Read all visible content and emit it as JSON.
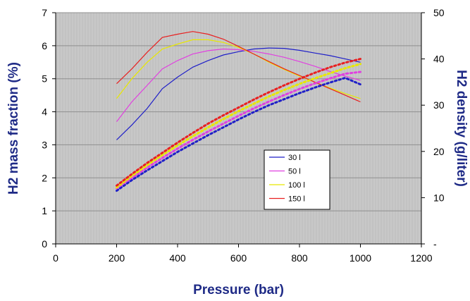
{
  "chart_data": {
    "type": "line",
    "xlabel": "Pressure (bar)",
    "ylabel": "H2 mass fraction (%)",
    "y2label": "H2 density (g/liter)",
    "xlim": [
      0,
      1200
    ],
    "ylim": [
      0,
      7
    ],
    "y2lim": [
      0,
      50
    ],
    "xticks": [
      "0",
      "200",
      "400",
      "600",
      "800",
      "1000",
      "1200"
    ],
    "yticks": [
      "0",
      "1",
      "2",
      "3",
      "4",
      "5",
      "6",
      "7"
    ],
    "y2ticks": [
      "-",
      "10",
      "20",
      "30",
      "40",
      "50"
    ],
    "grid": true,
    "plot_background": "#c8c8c8",
    "legend_position": "inside lower-right",
    "legend": [
      "30 l",
      "50 l",
      "100 l",
      "150 l"
    ],
    "colors": [
      "#1f1fc8",
      "#e040e0",
      "#e8e800",
      "#e82020"
    ],
    "mass_fraction_series": [
      {
        "name": "30 l",
        "color": "#1f1fc8",
        "x": [
          200,
          250,
          300,
          350,
          400,
          450,
          500,
          550,
          600,
          650,
          700,
          750,
          800,
          850,
          900,
          950,
          1000
        ],
        "y": [
          3.15,
          3.6,
          4.1,
          4.7,
          5.05,
          5.35,
          5.55,
          5.72,
          5.82,
          5.9,
          5.93,
          5.92,
          5.86,
          5.78,
          5.7,
          5.6,
          5.5
        ]
      },
      {
        "name": "50 l",
        "color": "#e040e0",
        "x": [
          200,
          250,
          300,
          350,
          400,
          450,
          500,
          550,
          600,
          650,
          700,
          750,
          800,
          850,
          900,
          950,
          1000
        ],
        "y": [
          3.7,
          4.3,
          4.8,
          5.3,
          5.55,
          5.75,
          5.85,
          5.9,
          5.88,
          5.83,
          5.75,
          5.65,
          5.52,
          5.38,
          5.22,
          5.08,
          4.95
        ]
      },
      {
        "name": "100 l",
        "color": "#e8e800",
        "x": [
          200,
          250,
          300,
          350,
          400,
          450,
          500,
          550,
          600,
          650,
          700,
          750,
          800,
          850,
          900,
          950,
          1000
        ],
        "y": [
          4.4,
          5.0,
          5.5,
          5.9,
          6.05,
          6.18,
          6.18,
          6.1,
          5.95,
          5.75,
          5.5,
          5.28,
          5.08,
          4.9,
          4.72,
          4.55,
          4.4
        ]
      },
      {
        "name": "150 l",
        "color": "#e82020",
        "x": [
          200,
          250,
          300,
          350,
          400,
          450,
          500,
          550,
          600,
          650,
          700,
          750,
          800,
          850,
          900,
          950,
          1000
        ],
        "y": [
          4.85,
          5.3,
          5.8,
          6.25,
          6.35,
          6.43,
          6.35,
          6.2,
          5.98,
          5.75,
          5.52,
          5.3,
          5.1,
          4.9,
          4.7,
          4.5,
          4.3
        ]
      }
    ],
    "density_series": [
      {
        "name": "30 l",
        "color": "#1f1fc8",
        "x": [
          200,
          250,
          300,
          350,
          400,
          450,
          500,
          550,
          600,
          650,
          700,
          750,
          800,
          850,
          900,
          950,
          1000
        ],
        "y": [
          11.5,
          13.8,
          15.9,
          17.9,
          19.9,
          21.7,
          23.5,
          25.2,
          26.9,
          28.5,
          30.0,
          31.3,
          32.6,
          33.8,
          34.9,
          35.9,
          34.5
        ]
      },
      {
        "name": "50 l",
        "color": "#e040e0",
        "x": [
          200,
          250,
          300,
          350,
          400,
          450,
          500,
          550,
          600,
          650,
          700,
          750,
          800,
          850,
          900,
          950,
          1000
        ],
        "y": [
          12.0,
          14.3,
          16.5,
          18.6,
          20.6,
          22.5,
          24.3,
          26.0,
          27.7,
          29.3,
          30.8,
          32.2,
          33.5,
          34.7,
          35.8,
          36.8,
          37.2
        ]
      },
      {
        "name": "100 l",
        "color": "#e8e800",
        "x": [
          200,
          250,
          300,
          350,
          400,
          450,
          500,
          550,
          600,
          650,
          700,
          750,
          800,
          850,
          900,
          950,
          1000
        ],
        "y": [
          12.2,
          14.7,
          17.0,
          19.2,
          21.3,
          23.3,
          25.2,
          27.0,
          28.7,
          30.3,
          31.9,
          33.3,
          34.6,
          35.8,
          36.9,
          38.0,
          38.9
        ]
      },
      {
        "name": "150 l",
        "color": "#e82020",
        "x": [
          200,
          250,
          300,
          350,
          400,
          450,
          500,
          550,
          600,
          650,
          700,
          750,
          800,
          850,
          900,
          950,
          1000
        ],
        "y": [
          12.6,
          15.1,
          17.5,
          19.7,
          21.9,
          24.0,
          26.0,
          27.8,
          29.5,
          31.2,
          32.8,
          34.3,
          35.7,
          37.0,
          38.2,
          39.2,
          40.0
        ]
      }
    ]
  }
}
